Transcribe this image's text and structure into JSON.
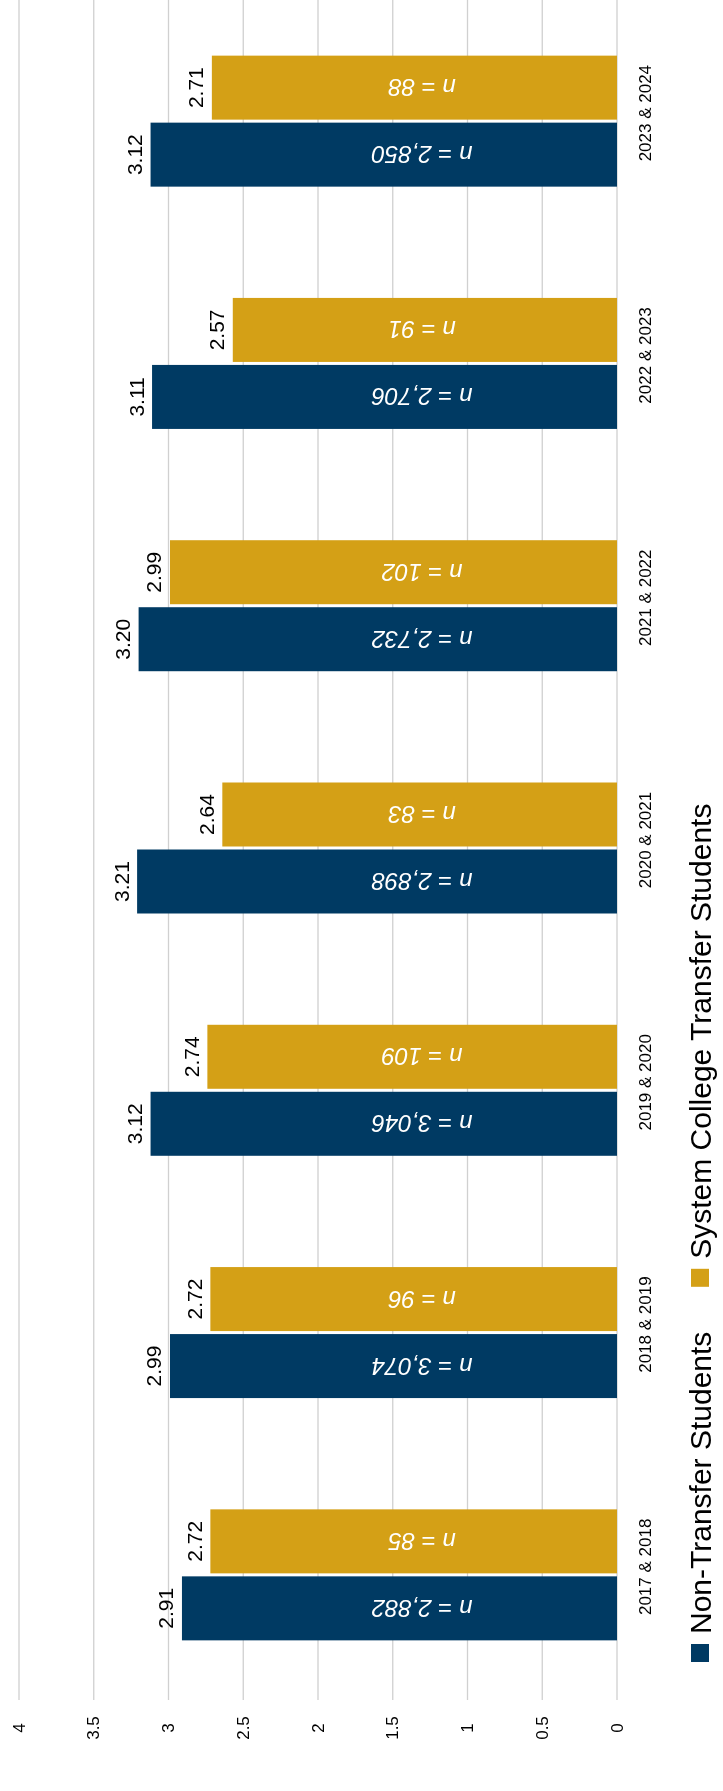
{
  "chart_data": {
    "type": "bar",
    "orientation": "horizontal",
    "categories": [
      "2023 & 2024",
      "2022 & 2023",
      "2021 & 2022",
      "2020 & 2021",
      "2019 & 2020",
      "2018 & 2019",
      "2017 & 2018"
    ],
    "series": [
      {
        "name": "Non-Transfer Students",
        "color": "#003a63",
        "values": [
          3.12,
          3.11,
          3.2,
          3.21,
          3.12,
          2.99,
          2.91
        ],
        "value_labels": [
          "3.12",
          "3.11",
          "3.20",
          "3.21",
          "3.12",
          "2.99",
          "2.91"
        ]
      },
      {
        "name": "System College Transfer Students",
        "color": "#d4a016",
        "values": [
          2.71,
          2.57,
          2.99,
          2.64,
          2.74,
          2.72,
          2.72
        ],
        "value_labels": [
          "2.71",
          "2.57",
          "2.99",
          "2.64",
          "2.74",
          "2.72",
          "2.72"
        ]
      }
    ],
    "xlim": [
      4,
      0
    ],
    "xticks": [
      0,
      0.5,
      1,
      1.5,
      2,
      2.5,
      3,
      3.5,
      4
    ],
    "grid": "x",
    "legend": "bottom",
    "annotations": [
      "n = 2,850",
      "n = 88",
      "n = 2,706",
      "n = 91",
      "n = 2,732",
      "n = 102",
      "n =  2,898",
      "n = 83",
      "n =  3,046",
      "n = 109",
      "n = 3,074",
      "n = 96",
      "n = 2,882",
      "n = 85"
    ]
  }
}
